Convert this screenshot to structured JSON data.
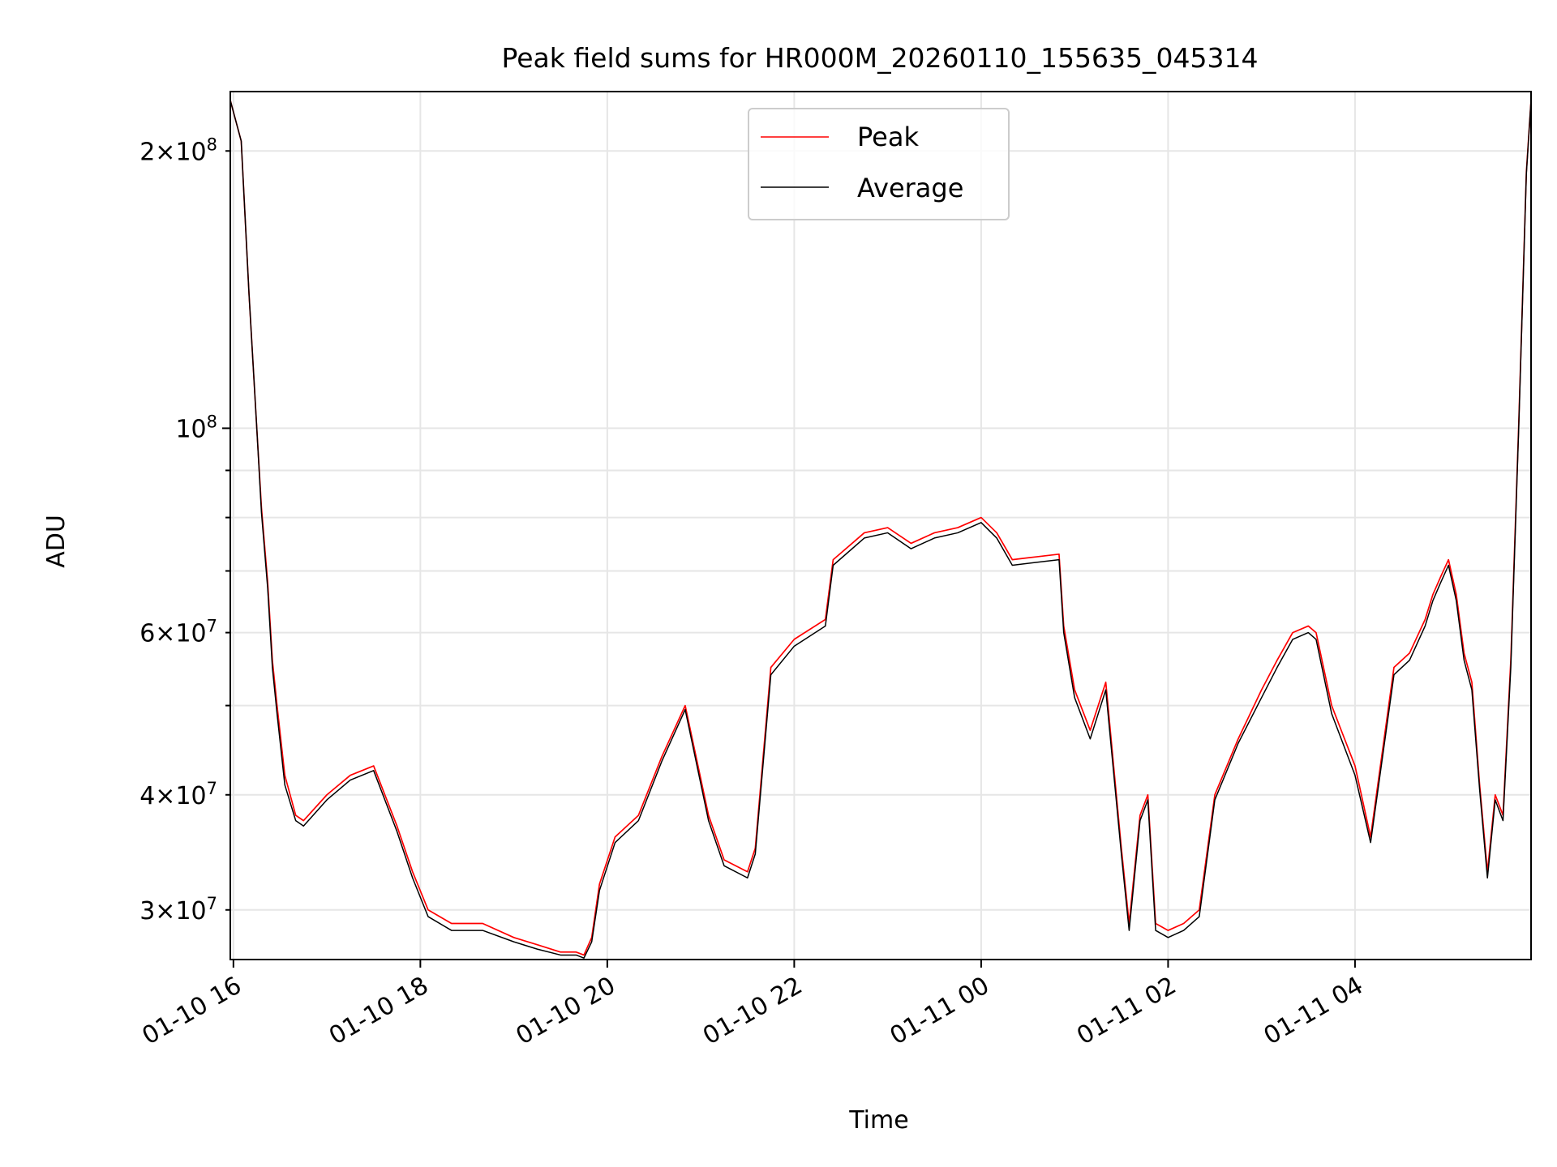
{
  "chart_data": {
    "type": "line",
    "title": "Peak field sums for HR000M_20260110_155635_045314",
    "xlabel": "Time",
    "ylabel": "ADU",
    "yscale": "log",
    "ylim": [
      26500000,
      232000000
    ],
    "xlim": [
      "2026-01-10 15:58",
      "2026-01-11 05:53"
    ],
    "grid": true,
    "legend_position": "top-center",
    "x_ticks": [
      "01-10 16",
      "01-10 18",
      "01-10 20",
      "01-10 22",
      "01-11 00",
      "01-11 02",
      "01-11 04"
    ],
    "y_ticks_major": [
      {
        "value": 100000000,
        "label": "10^8"
      }
    ],
    "y_ticks_minor": [
      {
        "value": 30000000,
        "label": "3×10^7"
      },
      {
        "value": 40000000,
        "label": "4×10^7"
      },
      {
        "value": 60000000,
        "label": "6×10^7"
      },
      {
        "value": 200000000,
        "label": "2×10^8"
      }
    ],
    "x": [
      "2026-01-10 15:58",
      "2026-01-10 16:05",
      "2026-01-10 16:10",
      "2026-01-10 16:15",
      "2026-01-10 16:18",
      "2026-01-10 16:22",
      "2026-01-10 16:25",
      "2026-01-10 16:28",
      "2026-01-10 16:33",
      "2026-01-10 16:40",
      "2026-01-10 16:45",
      "2026-01-10 17:00",
      "2026-01-10 17:15",
      "2026-01-10 17:30",
      "2026-01-10 17:45",
      "2026-01-10 17:55",
      "2026-01-10 18:05",
      "2026-01-10 18:20",
      "2026-01-10 18:40",
      "2026-01-10 19:00",
      "2026-01-10 19:15",
      "2026-01-10 19:30",
      "2026-01-10 19:40",
      "2026-01-10 19:45",
      "2026-01-10 19:50",
      "2026-01-10 19:55",
      "2026-01-10 20:05",
      "2026-01-10 20:20",
      "2026-01-10 20:35",
      "2026-01-10 20:50",
      "2026-01-10 21:05",
      "2026-01-10 21:15",
      "2026-01-10 21:30",
      "2026-01-10 21:35",
      "2026-01-10 21:45",
      "2026-01-10 22:00",
      "2026-01-10 22:20",
      "2026-01-10 22:25",
      "2026-01-10 22:45",
      "2026-01-10 23:00",
      "2026-01-10 23:15",
      "2026-01-10 23:30",
      "2026-01-10 23:45",
      "2026-01-11 00:00",
      "2026-01-11 00:10",
      "2026-01-11 00:20",
      "2026-01-11 00:35",
      "2026-01-11 00:50",
      "2026-01-11 00:53",
      "2026-01-11 01:00",
      "2026-01-11 01:10",
      "2026-01-11 01:20",
      "2026-01-11 01:30",
      "2026-01-11 01:35",
      "2026-01-11 01:42",
      "2026-01-11 01:47",
      "2026-01-11 01:52",
      "2026-01-11 02:00",
      "2026-01-11 02:10",
      "2026-01-11 02:20",
      "2026-01-11 02:30",
      "2026-01-11 02:45",
      "2026-01-11 03:00",
      "2026-01-11 03:10",
      "2026-01-11 03:20",
      "2026-01-11 03:30",
      "2026-01-11 03:35",
      "2026-01-11 03:45",
      "2026-01-11 04:00",
      "2026-01-11 04:10",
      "2026-01-11 04:25",
      "2026-01-11 04:35",
      "2026-01-11 04:45",
      "2026-01-11 04:50",
      "2026-01-11 04:55",
      "2026-01-11 05:00",
      "2026-01-11 05:05",
      "2026-01-11 05:10",
      "2026-01-11 05:15",
      "2026-01-11 05:20",
      "2026-01-11 05:25",
      "2026-01-11 05:30",
      "2026-01-11 05:35",
      "2026-01-11 05:40",
      "2026-01-11 05:45",
      "2026-01-11 05:50",
      "2026-01-11 05:53"
    ],
    "series": [
      {
        "name": "Peak",
        "color": "#ff0000",
        "values": [
          227000000,
          205000000,
          140000000,
          100000000,
          82000000,
          68000000,
          56000000,
          50000000,
          42000000,
          38000000,
          37500000,
          40000000,
          42000000,
          43000000,
          37000000,
          33000000,
          30000000,
          29000000,
          29000000,
          28000000,
          27500000,
          27000000,
          27000000,
          26800000,
          28000000,
          32000000,
          36000000,
          38000000,
          44000000,
          50000000,
          38000000,
          34000000,
          33000000,
          35000000,
          55000000,
          59000000,
          62000000,
          72000000,
          77000000,
          78000000,
          75000000,
          77000000,
          78000000,
          80000000,
          77000000,
          72000000,
          72500000,
          73000000,
          61000000,
          52000000,
          47000000,
          53000000,
          35000000,
          29000000,
          38000000,
          40000000,
          29000000,
          28500000,
          29000000,
          30000000,
          40000000,
          46000000,
          52000000,
          56000000,
          60000000,
          61000000,
          60000000,
          50000000,
          43000000,
          36000000,
          55000000,
          57000000,
          62000000,
          66000000,
          69000000,
          72000000,
          66000000,
          57000000,
          53000000,
          41000000,
          33000000,
          40000000,
          38000000,
          56000000,
          100000000,
          190000000,
          227000000
        ]
      },
      {
        "name": "Average",
        "color": "#000000",
        "values": [
          227000000,
          205000000,
          140000000,
          100000000,
          81000000,
          67000000,
          55000000,
          49000000,
          41000000,
          37500000,
          37000000,
          39500000,
          41500000,
          42500000,
          36500000,
          32500000,
          29500000,
          28500000,
          28500000,
          27700000,
          27200000,
          26800000,
          26800000,
          26600000,
          27700000,
          31500000,
          35500000,
          37500000,
          43500000,
          49500000,
          37500000,
          33500000,
          32500000,
          34500000,
          54000000,
          58000000,
          61000000,
          71000000,
          76000000,
          77000000,
          74000000,
          76000000,
          77000000,
          79000000,
          76000000,
          71000000,
          71500000,
          72000000,
          60000000,
          51000000,
          46000000,
          52000000,
          34500000,
          28500000,
          37500000,
          39500000,
          28500000,
          28000000,
          28500000,
          29500000,
          39500000,
          45500000,
          51000000,
          55000000,
          59000000,
          60000000,
          59000000,
          49000000,
          42000000,
          35500000,
          54000000,
          56000000,
          61000000,
          65000000,
          68000000,
          71000000,
          65000000,
          56000000,
          52000000,
          40500000,
          32500000,
          39500000,
          37500000,
          55000000,
          99000000,
          189000000,
          227000000
        ]
      }
    ]
  }
}
